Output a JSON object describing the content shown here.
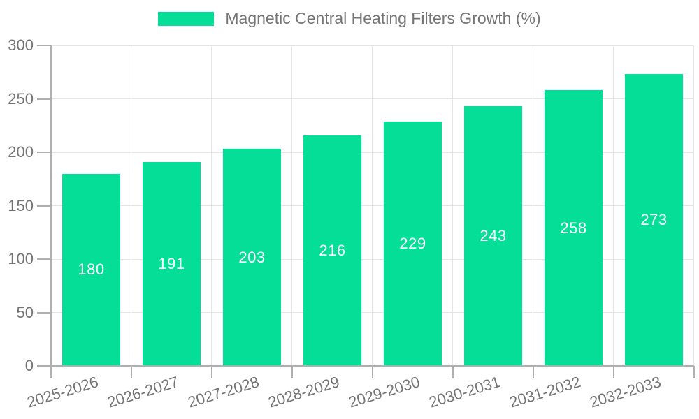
{
  "legend": {
    "label": "Magnetic Central Heating Filters Growth (%)"
  },
  "chart_data": {
    "type": "bar",
    "title": "Magnetic Central Heating Filters Growth (%)",
    "categories": [
      "2025-2026",
      "2026-2027",
      "2027-2028",
      "2028-2029",
      "2029-2030",
      "2030-2031",
      "2031-2032",
      "2032-2033"
    ],
    "values": [
      180,
      191,
      203,
      216,
      229,
      243,
      258,
      273
    ],
    "xlabel": "",
    "ylabel": "",
    "ylim": [
      0,
      300
    ],
    "yticks": [
      0,
      50,
      100,
      150,
      200,
      250,
      300
    ],
    "grid": true,
    "legend_position": "top-center",
    "value_labels": "inside-center",
    "colors": {
      "bar": "#05DE96",
      "value_label": "#FFFFFF",
      "axis_text": "#757575",
      "axis_line": "#AFAFAF",
      "gridline": "#E5E5E5",
      "background": "#FFFFFF"
    }
  }
}
